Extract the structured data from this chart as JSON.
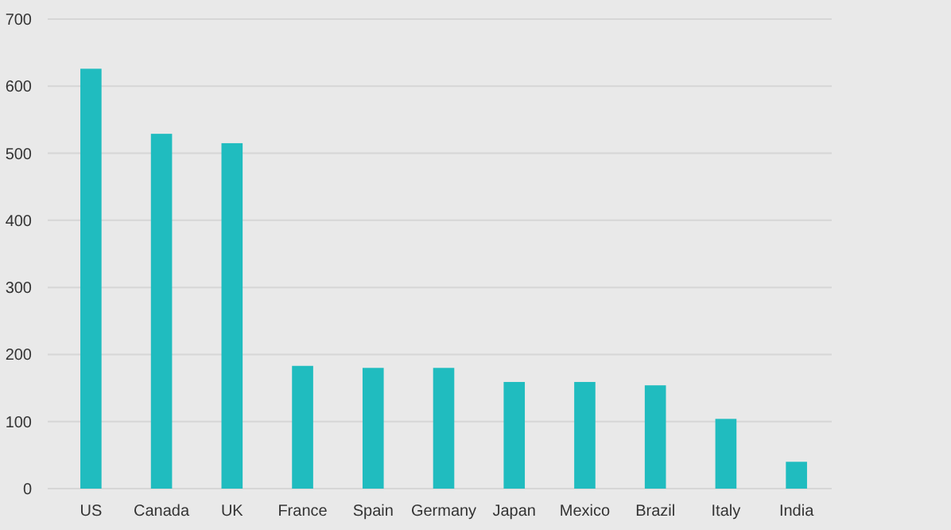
{
  "chart_data": {
    "type": "bar",
    "categories": [
      "US",
      "Canada",
      "UK",
      "France",
      "Spain",
      "Germany",
      "Japan",
      "Mexico",
      "Brazil",
      "Italy",
      "India"
    ],
    "values": [
      626,
      529,
      515,
      183,
      180,
      180,
      159,
      159,
      154,
      104,
      40
    ],
    "color": "#20bcbf",
    "ylim": [
      0,
      700
    ],
    "yticks": [
      0,
      100,
      200,
      300,
      400,
      500,
      600,
      700
    ],
    "grid": "y"
  }
}
